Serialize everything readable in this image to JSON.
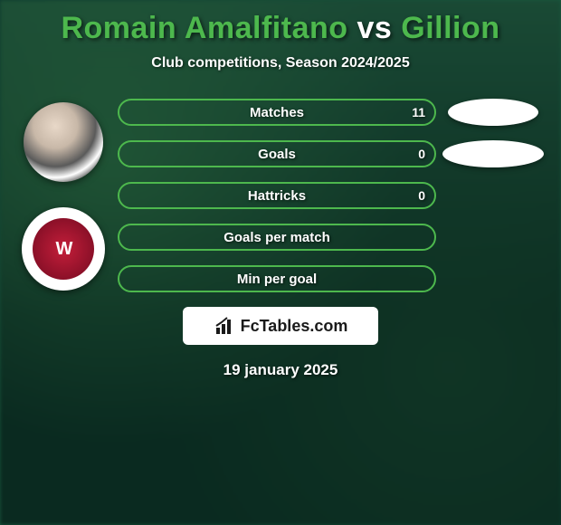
{
  "title": {
    "player1": "Romain Amalfitano",
    "vs": "vs",
    "player2": "Gillion",
    "color_player": "#4db84d",
    "color_vs": "#ffffff"
  },
  "subtitle": "Club competitions, Season 2024/2025",
  "stats": [
    {
      "label": "Matches",
      "value": "11",
      "border": "#4db84d",
      "show_ellipse": true,
      "ellipse_w": 100
    },
    {
      "label": "Goals",
      "value": "0",
      "border": "#4db84d",
      "show_ellipse": true,
      "ellipse_w": 112
    },
    {
      "label": "Hattricks",
      "value": "0",
      "border": "#4db84d",
      "show_ellipse": false,
      "ellipse_w": 0
    },
    {
      "label": "Goals per match",
      "value": "",
      "border": "#4db84d",
      "show_ellipse": false,
      "ellipse_w": 0
    },
    {
      "label": "Min per goal",
      "value": "",
      "border": "#4db84d",
      "show_ellipse": false,
      "ellipse_w": 0
    }
  ],
  "brand": "FcTables.com",
  "date": "19 january 2025",
  "colors": {
    "text": "#ffffff",
    "accent": "#4db84d",
    "ellipse": "#ffffff"
  }
}
